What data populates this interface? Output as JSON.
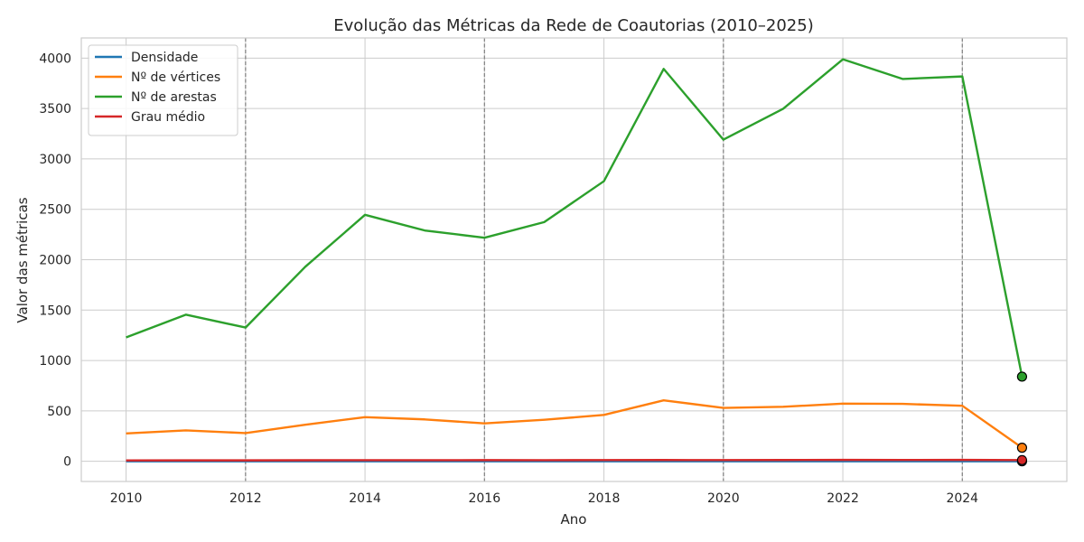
{
  "chart_data": {
    "type": "line",
    "title": "Evolução das Métricas da Rede de Coautorias (2010–2025)",
    "xlabel": "Ano",
    "ylabel": "Valor das métricas",
    "x": [
      2010,
      2011,
      2012,
      2013,
      2014,
      2015,
      2016,
      2017,
      2018,
      2019,
      2020,
      2021,
      2022,
      2023,
      2024,
      2025
    ],
    "xticks": [
      "2010",
      "2012",
      "2014",
      "2016",
      "2018",
      "2020",
      "2022",
      "2024"
    ],
    "yticks": [
      "0",
      "500",
      "1000",
      "1500",
      "2000",
      "2500",
      "3000",
      "3500",
      "4000"
    ],
    "xlim": [
      2009.25,
      2025.75
    ],
    "ylim": [
      -200,
      4200
    ],
    "grid": true,
    "legend_position": "top-left",
    "vertical_reference_lines": [
      2012,
      2016,
      2020,
      2024
    ],
    "highlighted_point_x": 2025,
    "series": [
      {
        "name": "Densidade",
        "color": "#1f77b4",
        "values": [
          0.04,
          0.03,
          0.03,
          0.03,
          0.03,
          0.03,
          0.03,
          0.03,
          0.03,
          0.02,
          0.02,
          0.02,
          0.02,
          0.02,
          0.02,
          0.09
        ]
      },
      {
        "name": "Nº de vértices",
        "color": "#ff7f0e",
        "values": [
          277,
          307,
          280,
          363,
          438,
          416,
          376,
          412,
          460,
          605,
          530,
          541,
          572,
          570,
          551,
          135
        ]
      },
      {
        "name": "Nº de arestas",
        "color": "#2ca02c",
        "values": [
          1229,
          1455,
          1327,
          1930,
          2445,
          2290,
          2218,
          2373,
          2779,
          3893,
          3191,
          3497,
          3988,
          3793,
          3818,
          840
        ]
      },
      {
        "name": "Grau médio",
        "color": "#d62728",
        "values": [
          8.9,
          9.5,
          9.5,
          10.6,
          11.2,
          11.0,
          11.8,
          11.5,
          12.1,
          12.9,
          12.0,
          12.9,
          13.9,
          13.3,
          13.9,
          12.4
        ]
      }
    ]
  }
}
